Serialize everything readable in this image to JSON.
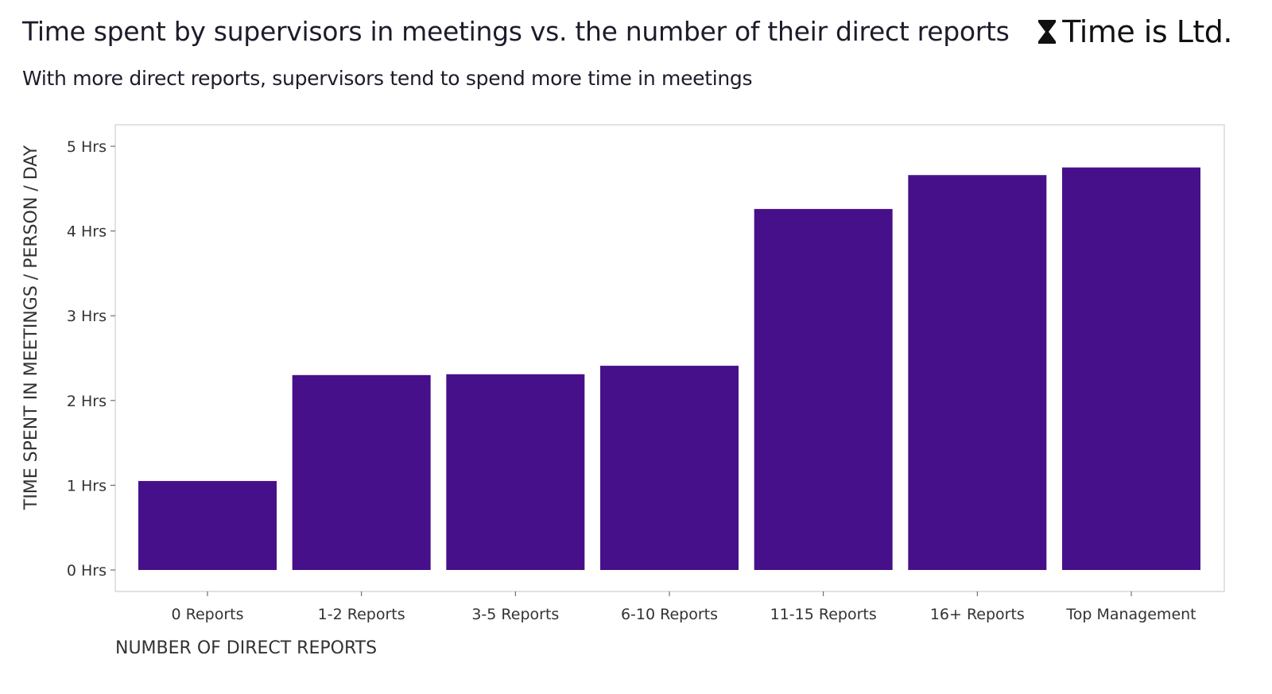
{
  "header": {
    "title": "Time spent by supervisors in meetings vs. the number of their direct reports",
    "subtitle": "With more direct reports, supervisors tend to spend more time in meetings"
  },
  "brand": {
    "logo_icon": "hourglass-icon",
    "name": "Time is Ltd."
  },
  "chart_data": {
    "type": "bar",
    "title": "Time spent by supervisors in meetings vs. the number of their direct reports",
    "subtitle": "With more direct reports, supervisors tend to spend more time in meetings",
    "xlabel": "NUMBER OF DIRECT REPORTS",
    "ylabel": "TIME SPENT IN MEETINGS / PERSON / DAY",
    "categories": [
      "0 Reports",
      "1-2 Reports",
      "3-5 Reports",
      "6-10 Reports",
      "11-15 Reports",
      "16+ Reports",
      "Top Management"
    ],
    "values": [
      1.05,
      2.3,
      2.31,
      2.41,
      4.26,
      4.66,
      4.75
    ],
    "ylim": [
      0,
      5
    ],
    "yticks": [
      0,
      1,
      2,
      3,
      4,
      5
    ],
    "ytick_labels": [
      "0 Hrs",
      "1 Hrs",
      "2 Hrs",
      "3 Hrs",
      "4 Hrs",
      "5 Hrs"
    ],
    "bar_color": "#46108a",
    "grid": false,
    "legend": "none"
  }
}
